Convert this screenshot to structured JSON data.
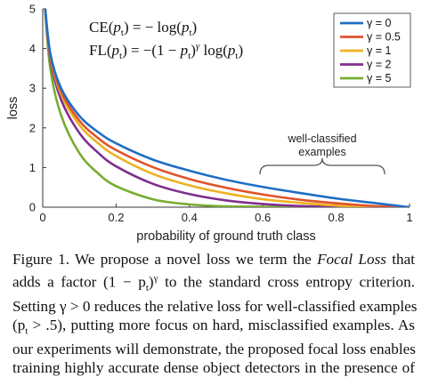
{
  "chart_data": {
    "type": "line",
    "xlabel": "probability of ground truth class",
    "ylabel": "loss",
    "xlim": [
      0,
      1
    ],
    "ylim": [
      0,
      5
    ],
    "xticks": [
      "0",
      "0.2",
      "0.4",
      "0.6",
      "0.8",
      "1"
    ],
    "yticks": [
      "0",
      "1",
      "2",
      "3",
      "4",
      "5"
    ],
    "x": [
      0.02,
      0.05,
      0.1,
      0.15,
      0.2,
      0.3,
      0.4,
      0.5,
      0.6,
      0.7,
      0.8,
      0.9,
      1.0
    ],
    "series": [
      {
        "name": "γ = 0",
        "color": "#1f6fc4",
        "values": [
          3.91,
          3.0,
          2.3,
          1.9,
          1.61,
          1.2,
          0.92,
          0.69,
          0.51,
          0.36,
          0.22,
          0.11,
          0.0
        ]
      },
      {
        "name": "γ = 0.5",
        "color": "#e0542a",
        "values": [
          3.87,
          2.92,
          2.18,
          1.75,
          1.44,
          1.01,
          0.71,
          0.49,
          0.32,
          0.19,
          0.1,
          0.03,
          0.0
        ]
      },
      {
        "name": "γ = 1",
        "color": "#edb120",
        "values": [
          3.83,
          2.85,
          2.07,
          1.62,
          1.29,
          0.84,
          0.55,
          0.35,
          0.2,
          0.11,
          0.04,
          0.01,
          0.0
        ]
      },
      {
        "name": "γ = 2",
        "color": "#7e2f8e",
        "values": [
          3.76,
          2.71,
          1.87,
          1.38,
          1.03,
          0.59,
          0.33,
          0.17,
          0.08,
          0.03,
          0.01,
          0.0,
          0.0
        ]
      },
      {
        "name": "γ = 5",
        "color": "#77ac30",
        "values": [
          3.54,
          2.32,
          1.36,
          0.86,
          0.53,
          0.2,
          0.07,
          0.02,
          0.01,
          0.0,
          0.0,
          0.0,
          0.0
        ]
      }
    ],
    "annotations": {
      "ce_prefix": "CE(",
      "ce_p": "p",
      "ce_sub": "t",
      "ce_rest": ") = − log(",
      "ce_end": ")",
      "fl_prefix": "FL(",
      "fl_mid": ") = −(1 − ",
      "fl_gamma": "γ",
      "fl_log": " log(",
      "fl_end": ")",
      "well_classified_line1": "well-classified",
      "well_classified_line2": "examples"
    },
    "legend_placement": "top-right",
    "grid": false
  },
  "caption": {
    "lines": [
      [
        "Figure 1. We propose a novel loss we term the ",
        {
          "i": "Focal Loss"
        },
        " that"
      ],
      [
        "adds a factor (1 − p",
        {
          "sub": "t"
        },
        ")",
        {
          "sup": "γ"
        },
        " to the standard cross entropy criterion."
      ],
      [
        "Setting γ > 0 reduces the relative loss for well-classified examples"
      ],
      [
        "(p",
        {
          "sub": "t"
        },
        " > .5), putting more focus on hard, misclassified examples. As"
      ],
      [
        "our experiments will demonstrate, the proposed focal loss enables"
      ],
      [
        "training highly accurate dense object detectors in the presence of"
      ]
    ]
  }
}
